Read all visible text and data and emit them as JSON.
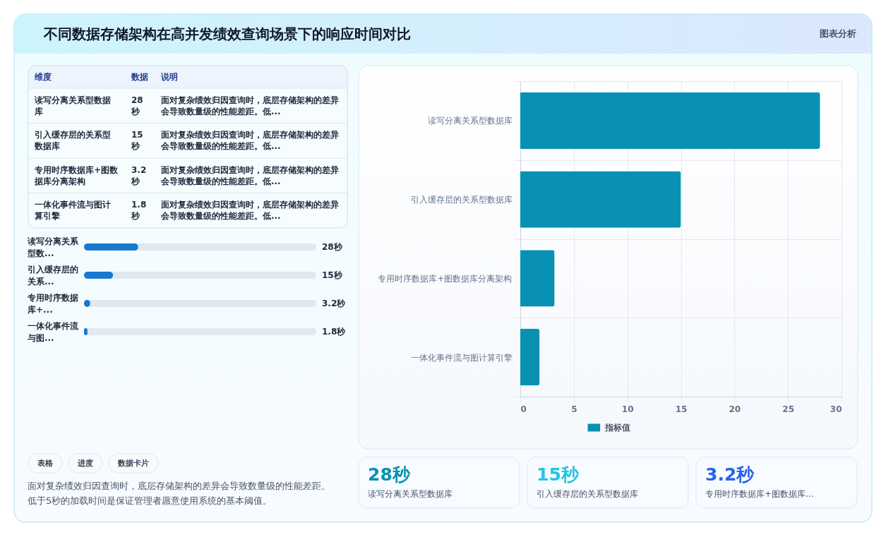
{
  "chart_data": [
    {
      "type": "other",
      "title": "不同数据存储架构在高并发绩效查询场景下的响应时间对比",
      "annotations": [
        "图表分析"
      ]
    },
    {
      "type": "other",
      "categories": [
        "读写分离关系型数据库",
        "引入缓存层的关系型数据库",
        "专用时序数据库+图数据库分离架构",
        "一体化事件流与图计算引擎"
      ],
      "value_labels": [
        "28秒",
        "15秒",
        "3.2秒",
        "1.8秒"
      ],
      "annotations": [
        "维度",
        "数据",
        "说明",
        "面对复杂绩效归因查询时，底层存储架构的差异会导致数量级的性能差距。低...",
        "面对复杂绩效归因查询时，底层存储架构的差异会导致数量级的性能差距。低...",
        "面对复杂绩效归因查询时，底层存储架构的差异会导致数量级的性能差距。低...",
        "面对复杂绩效归因查询时，底层存储架构的差异会导致数量级的性能差距。低..."
      ]
    },
    {
      "type": "bar",
      "orientation": "horizontal",
      "categories": [
        "读写分离关系型数...",
        "引入缓存层的关系...",
        "专用时序数据库+...",
        "一体化事件流与图..."
      ],
      "values": [
        28,
        15,
        3.2,
        1.8
      ],
      "value_labels": [
        "28秒",
        "15秒",
        "3.2秒",
        "1.8秒"
      ],
      "color": "#1679cf",
      "xlim": [
        0,
        120
      ],
      "tick_labels": "y"
    },
    {
      "type": "other",
      "annotations": [
        "表格",
        "进度",
        "数据卡片",
        "面对复杂绩效归因查询时，底层存储架构的差异会导致数量级的性能差距。低于5秒的加载时间是保证管理者愿意使用系统的基本阈值。"
      ]
    },
    {
      "type": "bar",
      "orientation": "horizontal",
      "categories": [
        "读写分离关系型数据库",
        "引入缓存层的关系型数据库",
        "专用时序数据库+图数据库分离架构",
        "一体化事件流与图计算引擎"
      ],
      "series": [
        {
          "name": "指标值",
          "color": "#0891b2",
          "values": [
            28,
            15,
            3.2,
            1.8
          ]
        }
      ],
      "xlim": [
        0,
        30
      ],
      "xticks": [
        0,
        5,
        10,
        15,
        20,
        25,
        30
      ],
      "grid": true,
      "legend": "bottom"
    },
    {
      "type": "other",
      "categories": [
        "读写分离关系型数据库",
        "引入缓存层的关系型数据库",
        "专用时序数据库+图数据库..."
      ],
      "value_labels": [
        "28秒",
        "15秒",
        "3.2秒"
      ]
    }
  ]
}
